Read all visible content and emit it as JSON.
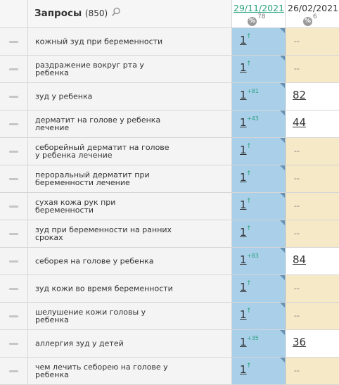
{
  "header": {
    "title": "Запросы",
    "count": "(850)",
    "date1": "29/11/2021",
    "date1_pct": "78",
    "date2": "26/02/2021",
    "date2_pct": "6",
    "pct_symbol": "%"
  },
  "icons": {
    "minus": "minus-icon",
    "search": "search-icon",
    "percent": "percent-icon",
    "up_arrow": "↑"
  },
  "colors": {
    "pos1_bg": "#a9cfe9",
    "pos2_empty_bg": "#f5e9c8",
    "green_accent": "#2aa37e"
  },
  "rows": [
    {
      "query": "кожный зуд при беременности",
      "pos1": "1",
      "arrow": "↑",
      "delta": "",
      "pos2": "--"
    },
    {
      "query": "раздражение вокруг рта у ребенка",
      "pos1": "1",
      "arrow": "↑",
      "delta": "",
      "pos2": "--"
    },
    {
      "query": "зуд у ребенка",
      "pos1": "1",
      "arrow": "",
      "delta": "+81",
      "pos2": "82"
    },
    {
      "query": "дерматит на голове у ребенка лечение",
      "pos1": "1",
      "arrow": "",
      "delta": "+43",
      "pos2": "44"
    },
    {
      "query": "себорейный дерматит на голове у ребенка лечение",
      "pos1": "1",
      "arrow": "↑",
      "delta": "",
      "pos2": "--"
    },
    {
      "query": "пероральный дерматит при беременности лечение",
      "pos1": "1",
      "arrow": "↑",
      "delta": "",
      "pos2": "--"
    },
    {
      "query": "сухая кожа рук при беременности",
      "pos1": "1",
      "arrow": "↑",
      "delta": "",
      "pos2": "--"
    },
    {
      "query": "зуд при беременности на ранних сроках",
      "pos1": "1",
      "arrow": "↑",
      "delta": "",
      "pos2": "--"
    },
    {
      "query": "себорея на голове у ребенка",
      "pos1": "1",
      "arrow": "",
      "delta": "+83",
      "pos2": "84"
    },
    {
      "query": "зуд кожи во время беременности",
      "pos1": "1",
      "arrow": "↑",
      "delta": "",
      "pos2": "--"
    },
    {
      "query": "шелушение кожи головы у ребенка",
      "pos1": "1",
      "arrow": "↑",
      "delta": "",
      "pos2": "--"
    },
    {
      "query": "аллергия зуд у детей",
      "pos1": "1",
      "arrow": "",
      "delta": "+35",
      "pos2": "36"
    },
    {
      "query": "чем лечить себорею на голове у ребенка",
      "pos1": "1",
      "arrow": "↑",
      "delta": "",
      "pos2": "--"
    }
  ]
}
